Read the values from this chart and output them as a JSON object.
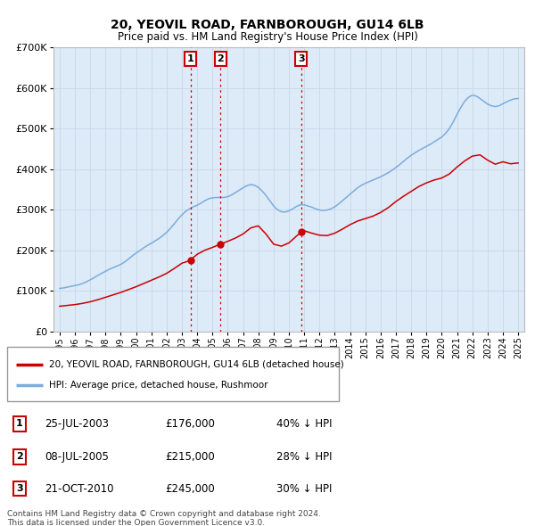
{
  "title": "20, YEOVIL ROAD, FARNBOROUGH, GU14 6LB",
  "subtitle": "Price paid vs. HM Land Registry's House Price Index (HPI)",
  "fig_bg": "#f0f0f0",
  "plot_bg": "#ddeaf8",
  "grid_color": "#c8d8e8",
  "ylim": [
    0,
    700000
  ],
  "yticks": [
    0,
    100000,
    200000,
    300000,
    400000,
    500000,
    600000,
    700000
  ],
  "ytick_labels": [
    "£0",
    "£100K",
    "£200K",
    "£300K",
    "£400K",
    "£500K",
    "£600K",
    "£700K"
  ],
  "xlim_start": 1994.6,
  "xlim_end": 2025.4,
  "red_color": "#cc0000",
  "blue_color": "#7aaddc",
  "vline1_x": 2003.56,
  "vline2_x": 2005.52,
  "vline3_x": 2010.81,
  "sale1_date": "25-JUL-2003",
  "sale1_price": "£176,000",
  "sale1_hpi": "40% ↓ HPI",
  "sale2_date": "08-JUL-2005",
  "sale2_price": "£215,000",
  "sale2_hpi": "28% ↓ HPI",
  "sale3_date": "21-OCT-2010",
  "sale3_price": "£245,000",
  "sale3_hpi": "30% ↓ HPI",
  "legend_red": "20, YEOVIL ROAD, FARNBOROUGH, GU14 6LB (detached house)",
  "legend_blue": "HPI: Average price, detached house, Rushmoor",
  "footnote1": "Contains HM Land Registry data © Crown copyright and database right 2024.",
  "footnote2": "This data is licensed under the Open Government Licence v3.0.",
  "hpi_years": [
    1995.0,
    1995.25,
    1995.5,
    1995.75,
    1996.0,
    1996.25,
    1996.5,
    1996.75,
    1997.0,
    1997.25,
    1997.5,
    1997.75,
    1998.0,
    1998.25,
    1998.5,
    1998.75,
    1999.0,
    1999.25,
    1999.5,
    1999.75,
    2000.0,
    2000.25,
    2000.5,
    2000.75,
    2001.0,
    2001.25,
    2001.5,
    2001.75,
    2002.0,
    2002.25,
    2002.5,
    2002.75,
    2003.0,
    2003.25,
    2003.5,
    2003.75,
    2004.0,
    2004.25,
    2004.5,
    2004.75,
    2005.0,
    2005.25,
    2005.5,
    2005.75,
    2006.0,
    2006.25,
    2006.5,
    2006.75,
    2007.0,
    2007.25,
    2007.5,
    2007.75,
    2008.0,
    2008.25,
    2008.5,
    2008.75,
    2009.0,
    2009.25,
    2009.5,
    2009.75,
    2010.0,
    2010.25,
    2010.5,
    2010.75,
    2011.0,
    2011.25,
    2011.5,
    2011.75,
    2012.0,
    2012.25,
    2012.5,
    2012.75,
    2013.0,
    2013.25,
    2013.5,
    2013.75,
    2014.0,
    2014.25,
    2014.5,
    2014.75,
    2015.0,
    2015.25,
    2015.5,
    2015.75,
    2016.0,
    2016.25,
    2016.5,
    2016.75,
    2017.0,
    2017.25,
    2017.5,
    2017.75,
    2018.0,
    2018.25,
    2018.5,
    2018.75,
    2019.0,
    2019.25,
    2019.5,
    2019.75,
    2020.0,
    2020.25,
    2020.5,
    2020.75,
    2021.0,
    2021.25,
    2021.5,
    2021.75,
    2022.0,
    2022.25,
    2022.5,
    2022.75,
    2023.0,
    2023.25,
    2023.5,
    2023.75,
    2024.0,
    2024.25,
    2024.5,
    2024.75,
    2025.0
  ],
  "hpi_values": [
    106000,
    107000,
    109000,
    111000,
    113000,
    115000,
    118000,
    122000,
    127000,
    132000,
    138000,
    143000,
    148000,
    153000,
    157000,
    161000,
    165000,
    171000,
    178000,
    186000,
    193000,
    199000,
    206000,
    212000,
    217000,
    223000,
    229000,
    236000,
    244000,
    254000,
    265000,
    277000,
    287000,
    296000,
    302000,
    307000,
    311000,
    316000,
    322000,
    327000,
    329000,
    330000,
    330000,
    330000,
    332000,
    336000,
    342000,
    348000,
    354000,
    359000,
    362000,
    360000,
    355000,
    346000,
    335000,
    322000,
    309000,
    300000,
    295000,
    294000,
    297000,
    302000,
    308000,
    312000,
    312000,
    309000,
    306000,
    302000,
    299000,
    298000,
    299000,
    302000,
    307000,
    314000,
    322000,
    330000,
    338000,
    346000,
    354000,
    360000,
    365000,
    369000,
    373000,
    377000,
    381000,
    386000,
    391000,
    397000,
    404000,
    411000,
    419000,
    427000,
    434000,
    440000,
    446000,
    451000,
    456000,
    461000,
    467000,
    473000,
    479000,
    488000,
    500000,
    516000,
    535000,
    552000,
    567000,
    577000,
    582000,
    580000,
    574000,
    567000,
    560000,
    556000,
    554000,
    556000,
    561000,
    566000,
    570000,
    573000,
    574000
  ],
  "red_years": [
    1995.0,
    1995.5,
    1996.0,
    1996.5,
    1997.0,
    1997.5,
    1998.0,
    1998.5,
    1999.0,
    1999.5,
    2000.0,
    2000.5,
    2001.0,
    2001.5,
    2002.0,
    2002.5,
    2003.0,
    2003.4,
    2003.56,
    2004.0,
    2004.5,
    2005.0,
    2005.52,
    2006.0,
    2006.5,
    2007.0,
    2007.5,
    2008.0,
    2008.5,
    2009.0,
    2009.5,
    2010.0,
    2010.5,
    2010.81,
    2011.0,
    2011.5,
    2012.0,
    2012.5,
    2013.0,
    2013.5,
    2014.0,
    2014.5,
    2015.0,
    2015.5,
    2016.0,
    2016.5,
    2017.0,
    2017.5,
    2018.0,
    2018.5,
    2019.0,
    2019.5,
    2020.0,
    2020.5,
    2021.0,
    2021.5,
    2022.0,
    2022.5,
    2023.0,
    2023.5,
    2024.0,
    2024.5,
    2025.0
  ],
  "red_values": [
    62000,
    64000,
    66000,
    69000,
    73000,
    78000,
    84000,
    90000,
    96000,
    103000,
    110000,
    118000,
    126000,
    134000,
    143000,
    155000,
    168000,
    173000,
    176000,
    190000,
    200000,
    207000,
    215000,
    222000,
    230000,
    240000,
    255000,
    260000,
    240000,
    215000,
    210000,
    218000,
    235000,
    245000,
    248000,
    242000,
    237000,
    236000,
    242000,
    252000,
    263000,
    272000,
    278000,
    284000,
    293000,
    305000,
    320000,
    333000,
    345000,
    357000,
    366000,
    373000,
    378000,
    388000,
    405000,
    420000,
    432000,
    435000,
    422000,
    412000,
    418000,
    413000,
    415000
  ]
}
